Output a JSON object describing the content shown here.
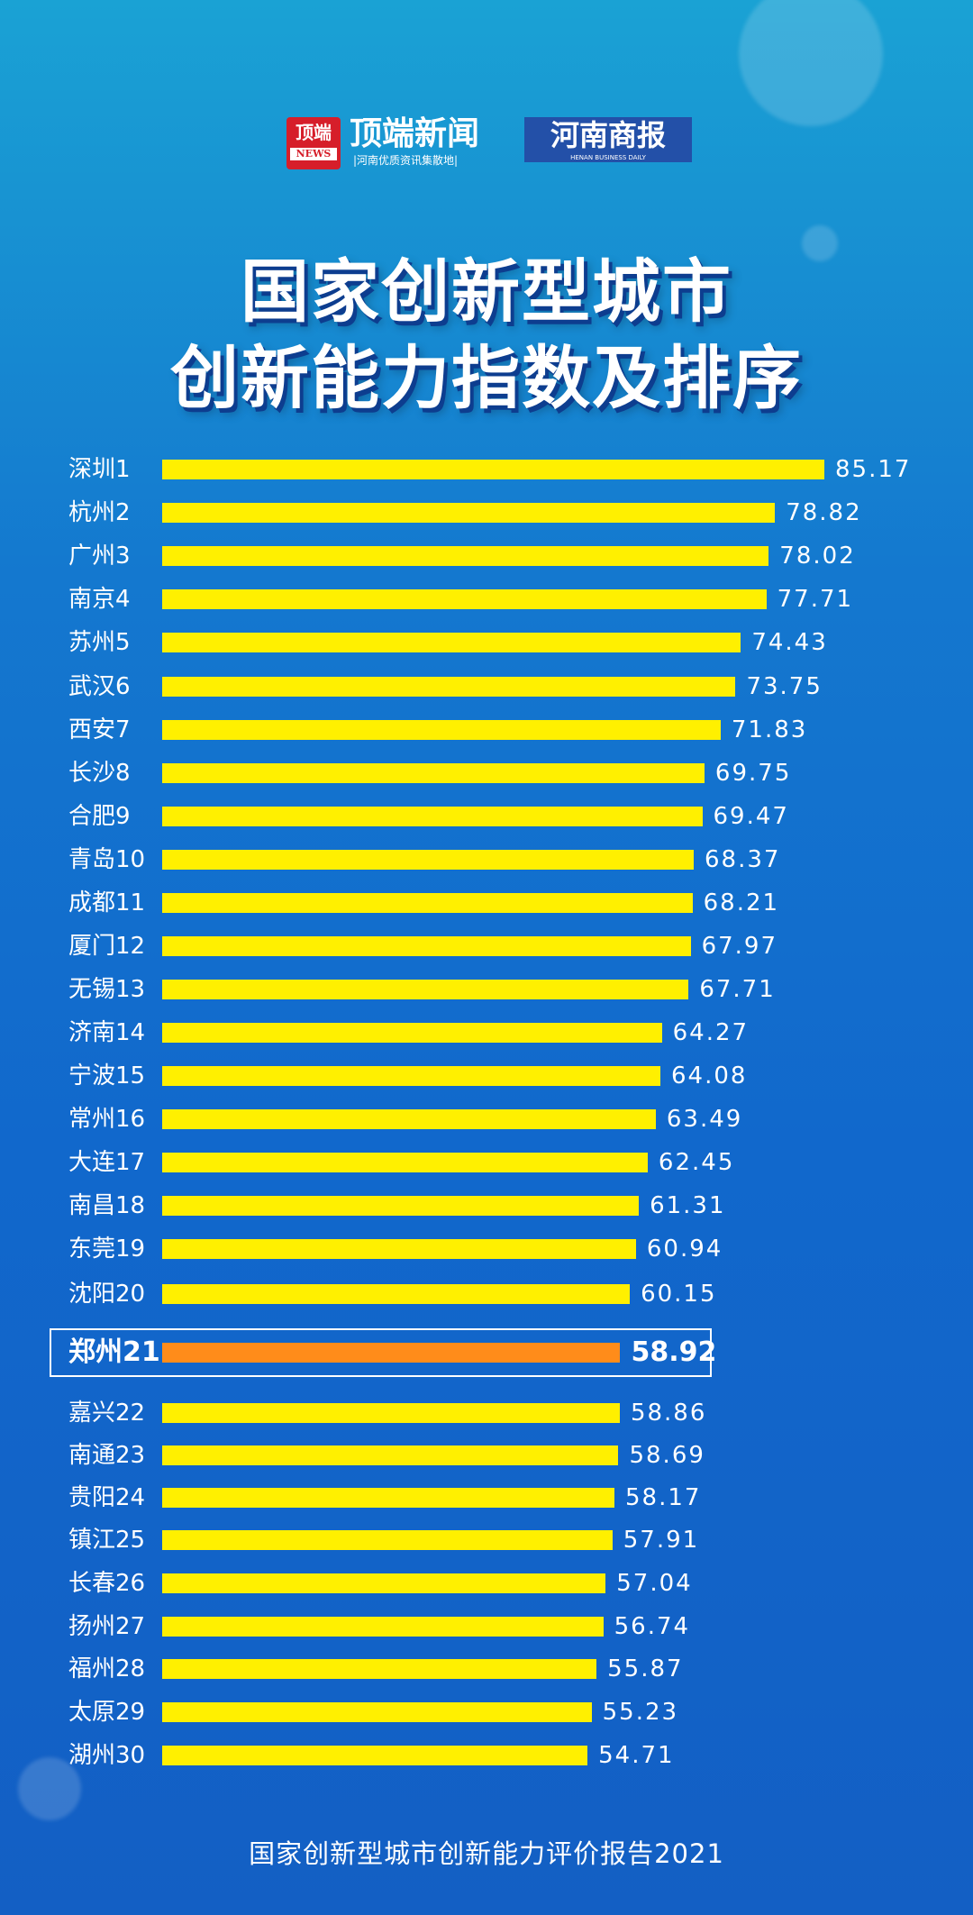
{
  "header": {
    "logo1_badge": "顶端",
    "logo1_badge_en": "NEWS",
    "logo1_name": "顶端新闻",
    "logo1_sub": "|河南优质资讯集散地|",
    "logo2_name": "河南商报",
    "logo2_sub": "HENAN BUSINESS DAILY"
  },
  "title_line1": "国家创新型城市",
  "title_line2": "创新能力指数及排序",
  "footer": "国家创新型城市创新能力评价报告2021",
  "colors": {
    "bar": "#fff000",
    "highlight_bar": "#ff8c1a",
    "background": "#1478cf"
  },
  "chart_data": {
    "type": "bar",
    "orientation": "horizontal",
    "title": "国家创新型城市创新能力指数及排序",
    "highlight": "郑州21",
    "categories": [
      "深圳1",
      "杭州2",
      "广州3",
      "南京4",
      "苏州5",
      "武汉6",
      "西安7",
      "长沙8",
      "合肥9",
      "青岛10",
      "成都11",
      "厦门12",
      "无锡13",
      "济南14",
      "宁波15",
      "常州16",
      "大连17",
      "南昌18",
      "东莞19",
      "沈阳20",
      "郑州21",
      "嘉兴22",
      "南通23",
      "贵阳24",
      "镇江25",
      "长春26",
      "扬州27",
      "福州28",
      "太原29",
      "湖州30"
    ],
    "values": [
      85.17,
      78.82,
      78.02,
      77.71,
      74.43,
      73.75,
      71.83,
      69.75,
      69.47,
      68.37,
      68.21,
      67.97,
      67.71,
      64.27,
      64.08,
      63.49,
      62.45,
      61.31,
      60.94,
      60.15,
      58.92,
      58.86,
      58.69,
      58.17,
      57.91,
      57.04,
      56.74,
      55.87,
      55.23,
      54.71
    ],
    "value_labels": [
      "85.17",
      "78.82",
      "78.02",
      "77.71",
      "74.43",
      "73.75",
      "71.83",
      "69.75",
      "69.47",
      "68.37",
      "68.21",
      "67.97",
      "67.71",
      "64.27",
      "64.08",
      "63.49",
      "62.45",
      "61.31",
      "60.94",
      "60.15",
      "58.92",
      "58.86",
      "58.69",
      "58.17",
      "57.91",
      "57.04",
      "56.74",
      "55.87",
      "55.23",
      "54.71"
    ]
  }
}
